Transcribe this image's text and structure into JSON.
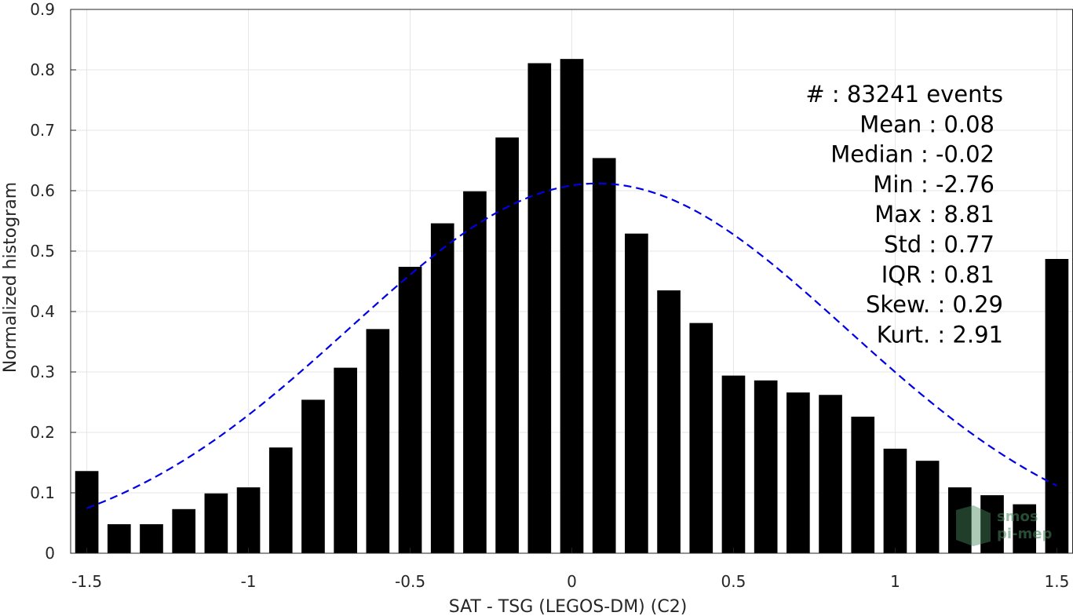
{
  "chart_data": {
    "type": "bar",
    "xlabel": "SAT - TSG (LEGOS-DM) (C2)",
    "ylabel": "Normalized histogram",
    "xlim": [
      -1.55,
      1.55
    ],
    "ylim": [
      0,
      0.9
    ],
    "grid": true,
    "xticks": [
      -1.5,
      -1,
      -0.5,
      0,
      0.5,
      1,
      1.5
    ],
    "xtick_labels": [
      "-1.5",
      "-1",
      "-0.5",
      "0",
      "0.5",
      "1",
      "1.5"
    ],
    "yticks": [
      0,
      0.1,
      0.2,
      0.3,
      0.4,
      0.5,
      0.6,
      0.7,
      0.8,
      0.9
    ],
    "ytick_labels": [
      "0",
      "0.1",
      "0.2",
      "0.3",
      "0.4",
      "0.5",
      "0.6",
      "0.7",
      "0.8",
      "0.9"
    ],
    "bar_color": "#000000",
    "bar_width": 0.072,
    "x": [
      -1.5,
      -1.4,
      -1.3,
      -1.2,
      -1.1,
      -1.0,
      -0.9,
      -0.8,
      -0.7,
      -0.6,
      -0.5,
      -0.4,
      -0.3,
      -0.2,
      -0.1,
      0.0,
      0.1,
      0.2,
      0.3,
      0.4,
      0.5,
      0.6,
      0.7,
      0.8,
      0.9,
      1.0,
      1.1,
      1.2,
      1.3,
      1.4,
      1.5
    ],
    "values": [
      0.136,
      0.048,
      0.048,
      0.073,
      0.099,
      0.109,
      0.175,
      0.254,
      0.307,
      0.371,
      0.474,
      0.546,
      0.599,
      0.688,
      0.811,
      0.818,
      0.654,
      0.529,
      0.435,
      0.381,
      0.294,
      0.286,
      0.266,
      0.262,
      0.226,
      0.173,
      0.153,
      0.109,
      0.096,
      0.081,
      0.487
    ],
    "fit_curve": {
      "style": "dashed",
      "color": "#0000e6",
      "mean": 0.08,
      "std": 0.77,
      "peak": 0.612,
      "x_range": [
        -1.5,
        1.5
      ]
    },
    "stats_lines": [
      "#  : 83241 events",
      "Mean : 0.08",
      "Median : -0.02",
      "Min : -2.76",
      "Max : 8.81",
      "Std : 0.77",
      "IQR : 0.81",
      "Skew. : 0.29",
      "Kurt. : 2.91"
    ],
    "watermark": [
      "smos",
      "pi-mep"
    ]
  }
}
